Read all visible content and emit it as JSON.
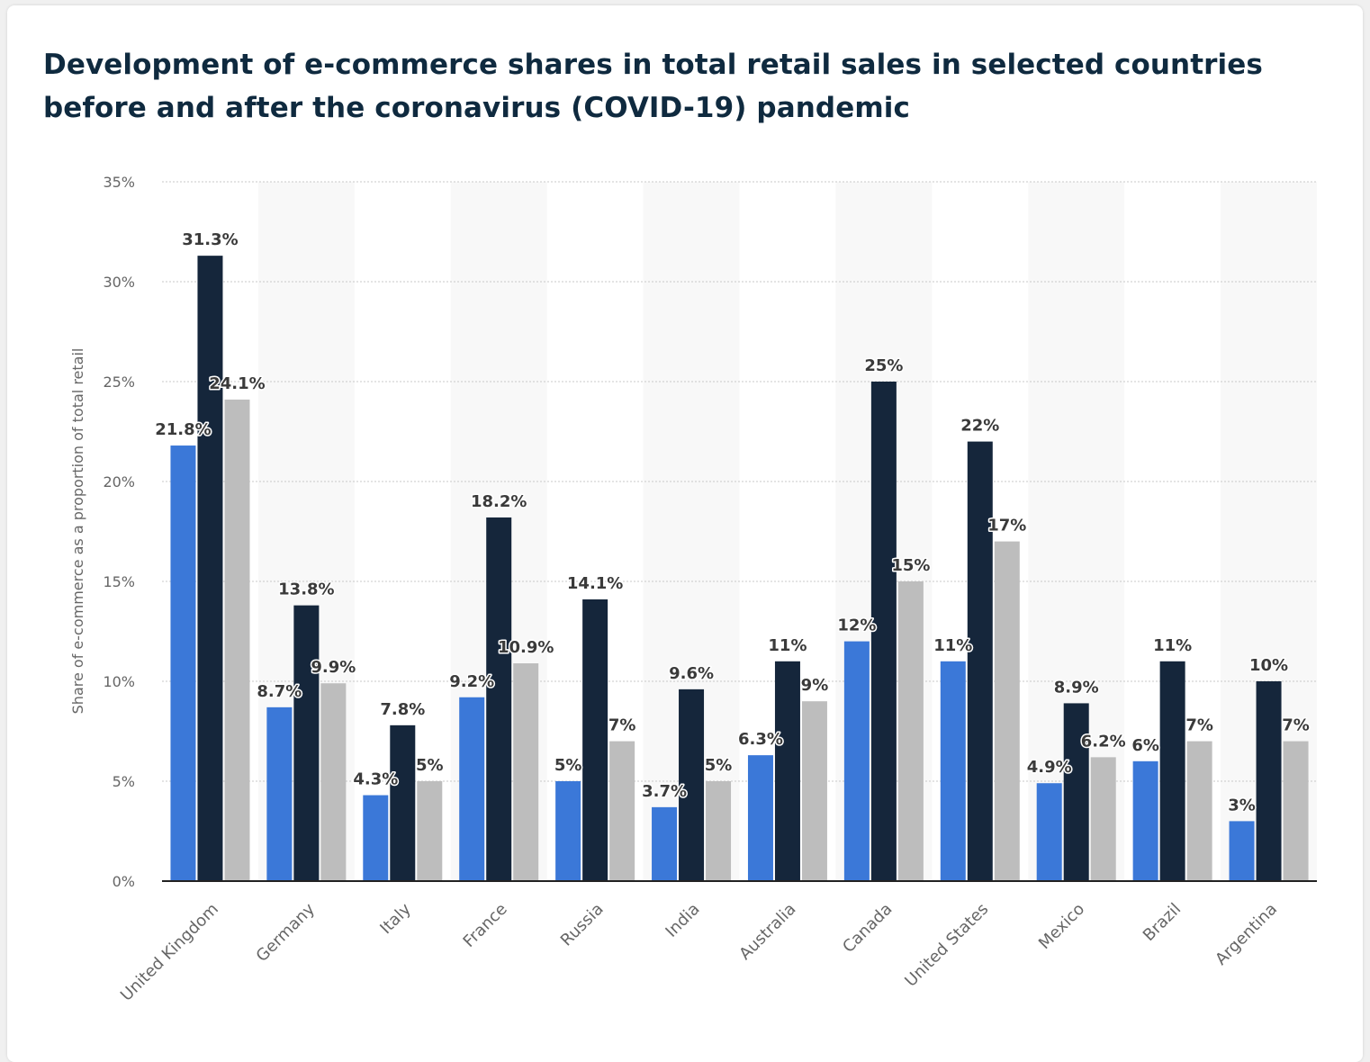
{
  "title": "Development of e-commerce shares in total retail sales in selected countries before and after the coronavirus (COVID-19) pandemic",
  "colors": {
    "series": [
      "#3b78d8",
      "#15263b",
      "#bdbdbd"
    ],
    "band": "#f8f8f8",
    "grid": "#c8c8c8",
    "axis": "#222222"
  },
  "chart_data": {
    "type": "bar",
    "title": "Development of e-commerce shares in total retail sales in selected countries before and after the coronavirus (COVID-19) pandemic",
    "xlabel": "",
    "ylabel": "Share of e-commerce as a proportion of total retail",
    "ylim": [
      0,
      35
    ],
    "yticks": [
      0,
      5,
      10,
      15,
      20,
      25,
      30,
      35
    ],
    "ytick_labels": [
      "0%",
      "5%",
      "10%",
      "15%",
      "20%",
      "25%",
      "30%",
      "35%"
    ],
    "grid": true,
    "legend": "none",
    "categories": [
      "United Kingdom",
      "Germany",
      "Italy",
      "France",
      "Russia",
      "India",
      "Australia",
      "Canada",
      "United States",
      "Mexico",
      "Brazil",
      "Argentina"
    ],
    "series": [
      {
        "values": [
          21.8,
          8.7,
          4.3,
          9.2,
          5,
          3.7,
          6.3,
          12,
          11,
          4.9,
          6,
          3
        ],
        "labels": [
          "21.8%",
          "8.7%",
          "4.3%",
          "9.2%",
          "5%",
          "3.7%",
          "6.3%",
          "12%",
          "11%",
          "4.9%",
          "6%",
          "3%"
        ]
      },
      {
        "values": [
          31.3,
          13.8,
          7.8,
          18.2,
          14.1,
          9.6,
          11,
          25,
          22,
          8.9,
          11,
          10
        ],
        "labels": [
          "31.3%",
          "13.8%",
          "7.8%",
          "18.2%",
          "14.1%",
          "9.6%",
          "11%",
          "25%",
          "22%",
          "8.9%",
          "11%",
          "10%"
        ]
      },
      {
        "values": [
          24.1,
          9.9,
          5,
          10.9,
          7,
          5,
          9,
          15,
          17,
          6.2,
          7,
          7
        ],
        "labels": [
          "24.1%",
          "9.9%",
          "5%",
          "10.9%",
          "7%",
          "5%",
          "9%",
          "15%",
          "17%",
          "6.2%",
          "7%",
          "7%"
        ]
      }
    ]
  }
}
